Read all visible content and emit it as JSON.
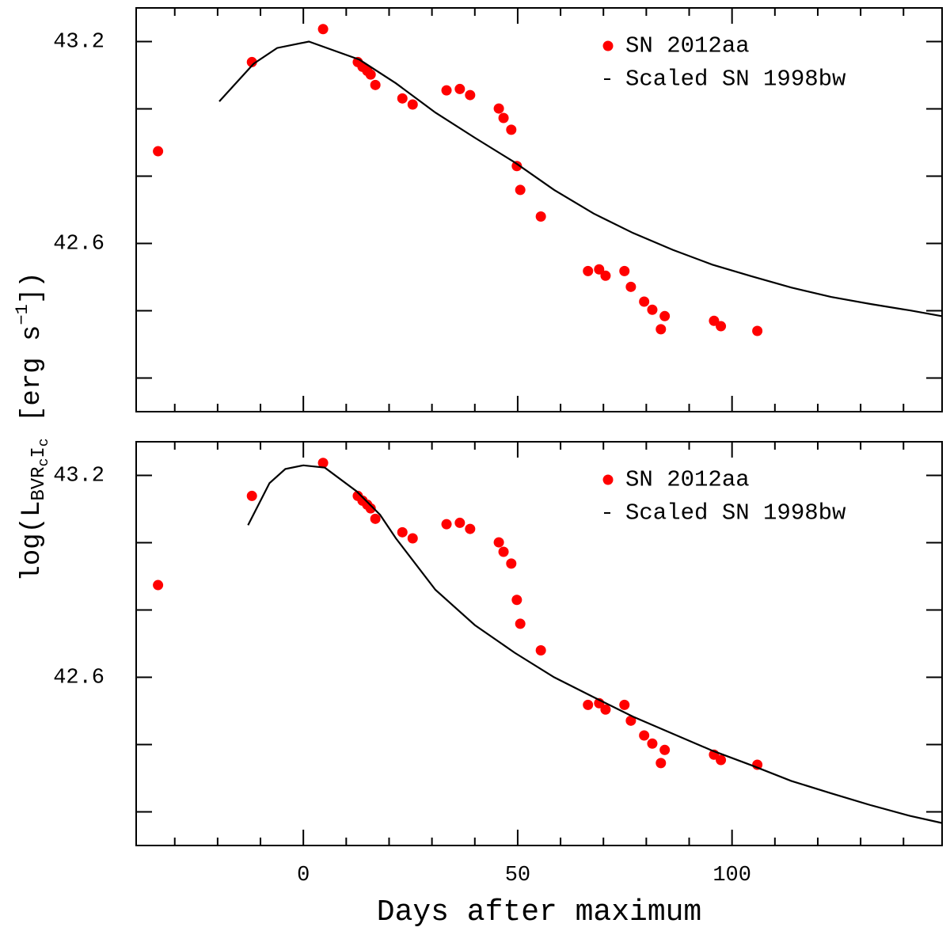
{
  "chart_data": [
    {
      "type": "scatter",
      "xlim": [
        -39,
        149
      ],
      "ylim": [
        42.1,
        43.3
      ],
      "xticks": [
        0,
        50,
        100
      ],
      "xticks_minor": [
        -30,
        -20,
        -10,
        10,
        20,
        30,
        40,
        60,
        70,
        80,
        90,
        110,
        120,
        130,
        140
      ],
      "yticks": [
        42.6,
        43.2
      ],
      "yticks_minor": [
        42.2,
        42.4,
        42.8,
        43.0
      ],
      "legend": "upper right",
      "show_xtick_labels": false,
      "series": [
        {
          "name": "SN 2012aa",
          "color": "#ff0000",
          "mode": "markers",
          "x": [
            -33.9,
            -12.0,
            4.6,
            12.7,
            13.8,
            14.9,
            15.7,
            16.8,
            23.1,
            25.5,
            33.4,
            36.5,
            38.9,
            45.6,
            46.7,
            48.5,
            49.8,
            50.6,
            55.4,
            66.4,
            69.0,
            70.5,
            74.9,
            76.4,
            79.5,
            81.4,
            84.3,
            83.4,
            95.8,
            97.4,
            105.9
          ],
          "values": [
            42.874,
            43.139,
            43.237,
            43.139,
            43.125,
            43.113,
            43.102,
            43.071,
            43.031,
            43.013,
            43.055,
            43.059,
            43.041,
            43.001,
            42.973,
            42.938,
            42.83,
            42.759,
            42.68,
            42.518,
            42.523,
            42.504,
            42.518,
            42.471,
            42.427,
            42.403,
            42.384,
            42.345,
            42.37,
            42.354,
            42.34
          ]
        },
        {
          "name": "Scaled SN 1998bw",
          "color": "#000000",
          "mode": "line",
          "x": [
            -19.6,
            -11.6,
            -6.1,
            1.3,
            13.1,
            21.6,
            30.8,
            40.0,
            49.3,
            58.5,
            67.7,
            76.9,
            86.2,
            95.4,
            104.6,
            113.8,
            123.1,
            132.3,
            141.5,
            148.9
          ],
          "values": [
            43.022,
            43.134,
            43.181,
            43.2,
            43.146,
            43.076,
            42.989,
            42.914,
            42.841,
            42.759,
            42.689,
            42.631,
            42.581,
            42.537,
            42.502,
            42.469,
            42.441,
            42.42,
            42.401,
            42.384
          ]
        }
      ]
    },
    {
      "type": "scatter",
      "xlim": [
        -39,
        149
      ],
      "ylim": [
        42.1,
        43.3
      ],
      "xticks": [
        0,
        50,
        100
      ],
      "xticks_minor": [
        -30,
        -20,
        -10,
        10,
        20,
        30,
        40,
        60,
        70,
        80,
        90,
        110,
        120,
        130,
        140
      ],
      "yticks": [
        42.6,
        43.2
      ],
      "yticks_minor": [
        42.2,
        42.4,
        42.8,
        43.0
      ],
      "legend": "upper right",
      "show_xtick_labels": true,
      "series": [
        {
          "name": "SN 2012aa",
          "color": "#ff0000",
          "mode": "markers",
          "x": [
            -33.9,
            -12.0,
            4.6,
            12.7,
            13.8,
            14.9,
            15.7,
            16.8,
            23.1,
            25.5,
            33.4,
            36.5,
            38.9,
            45.6,
            46.7,
            48.5,
            49.8,
            50.6,
            55.4,
            66.4,
            69.0,
            70.5,
            74.9,
            76.4,
            79.5,
            81.4,
            84.3,
            83.4,
            95.8,
            97.4,
            105.9
          ],
          "values": [
            42.874,
            43.139,
            43.237,
            43.139,
            43.125,
            43.113,
            43.102,
            43.071,
            43.031,
            43.013,
            43.055,
            43.059,
            43.041,
            43.001,
            42.973,
            42.938,
            42.83,
            42.759,
            42.68,
            42.518,
            42.523,
            42.504,
            42.518,
            42.471,
            42.427,
            42.403,
            42.384,
            42.345,
            42.37,
            42.354,
            42.34
          ]
        },
        {
          "name": "Scaled SN 1998bw",
          "color": "#000000",
          "mode": "line",
          "x": [
            -12.9,
            -7.9,
            -4.2,
            0,
            5.0,
            12.4,
            17.9,
            21.6,
            30.8,
            40.0,
            49.3,
            58.5,
            67.7,
            76.9,
            86.2,
            95.4,
            104.6,
            113.8,
            123.1,
            132.3,
            141.5,
            148.9
          ],
          "values": [
            43.052,
            43.177,
            43.219,
            43.23,
            43.223,
            43.153,
            43.083,
            43.013,
            42.86,
            42.755,
            42.673,
            42.6,
            42.541,
            42.483,
            42.432,
            42.382,
            42.338,
            42.292,
            42.255,
            42.22,
            42.188,
            42.167
          ]
        }
      ]
    }
  ],
  "xlabel": "Days after maximum",
  "ylabel": [
    {
      "text": "log(L",
      "shift": "none"
    },
    {
      "text": "BVR",
      "shift": "sub"
    },
    {
      "text": "c",
      "shift": "subsub"
    },
    {
      "text": "I",
      "shift": "sub"
    },
    {
      "text": "c",
      "shift": "subsub"
    },
    {
      "text": " [erg s",
      "shift": "none"
    },
    {
      "text": "−1",
      "shift": "sup"
    },
    {
      "text": "])",
      "shift": "none"
    }
  ]
}
